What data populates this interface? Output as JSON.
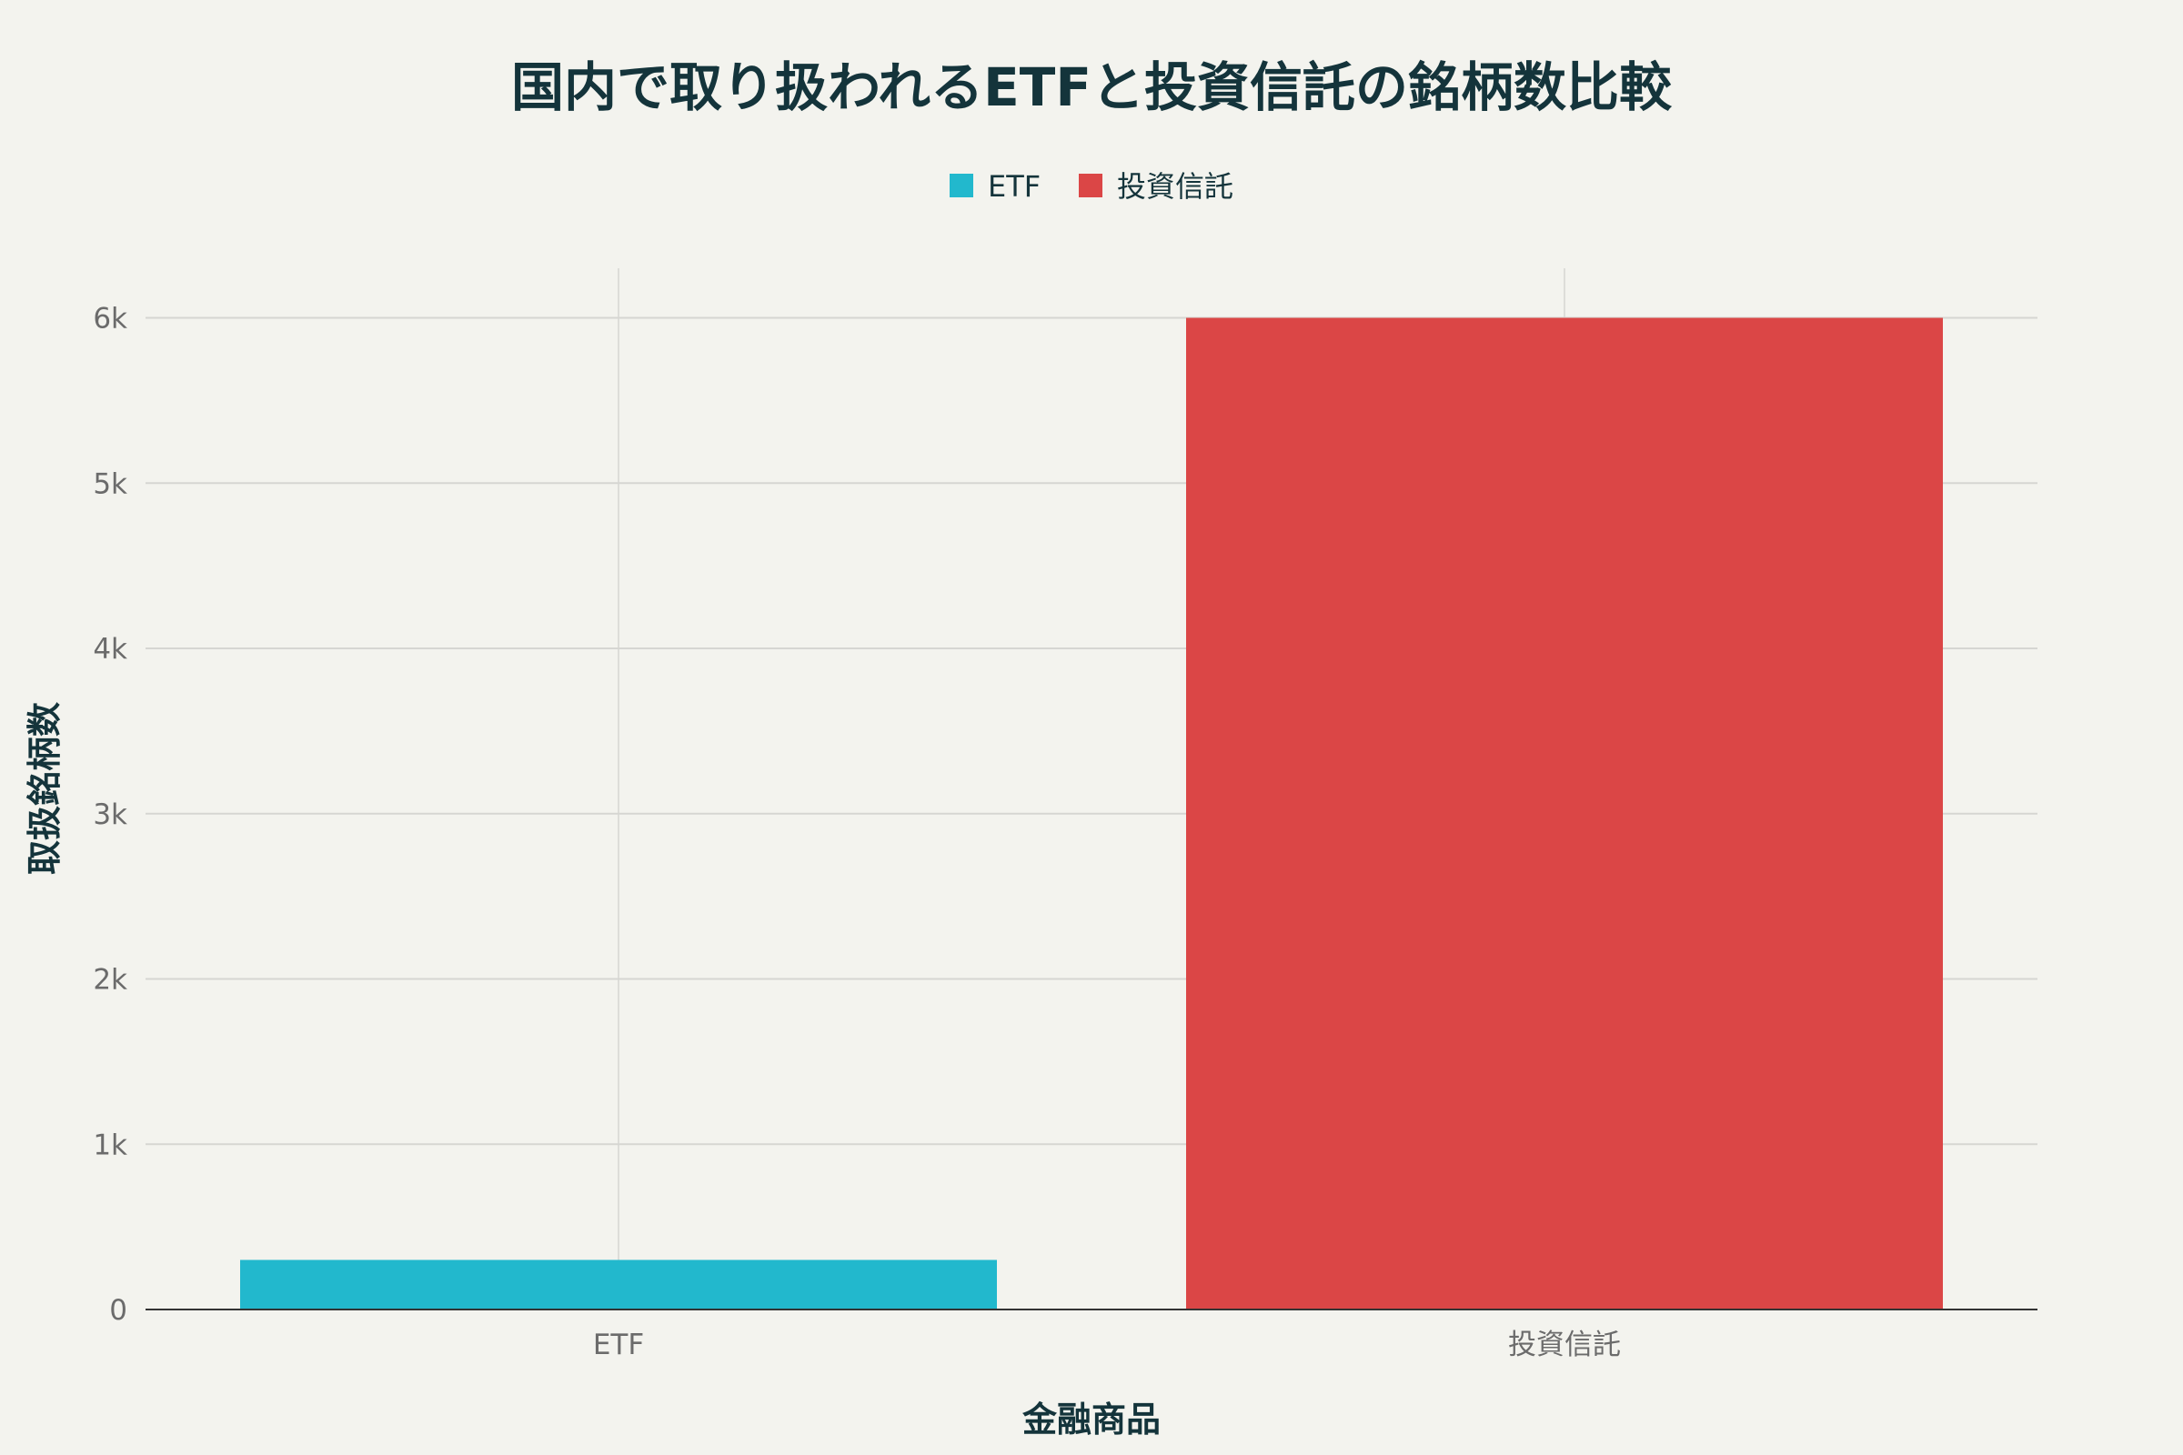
{
  "chart_data": {
    "type": "bar",
    "title": "国内で取り扱われるETFと投資信託の銘柄数比較",
    "xlabel": "金融商品",
    "ylabel": "取扱銘柄数",
    "categories": [
      "ETF",
      "投資信託"
    ],
    "series": [
      {
        "name": "ETF",
        "values": [
          300,
          null
        ],
        "color": "#22b8cd"
      },
      {
        "name": "投資信託",
        "values": [
          null,
          6000
        ],
        "color": "#db4646"
      }
    ],
    "ylim": [
      0,
      6300
    ],
    "yticks": [
      0,
      1000,
      2000,
      3000,
      4000,
      5000,
      6000
    ],
    "ytick_labels": [
      "0",
      "1k",
      "2k",
      "3k",
      "4k",
      "5k",
      "6k"
    ],
    "grid": true,
    "legend_position": "top-center"
  }
}
